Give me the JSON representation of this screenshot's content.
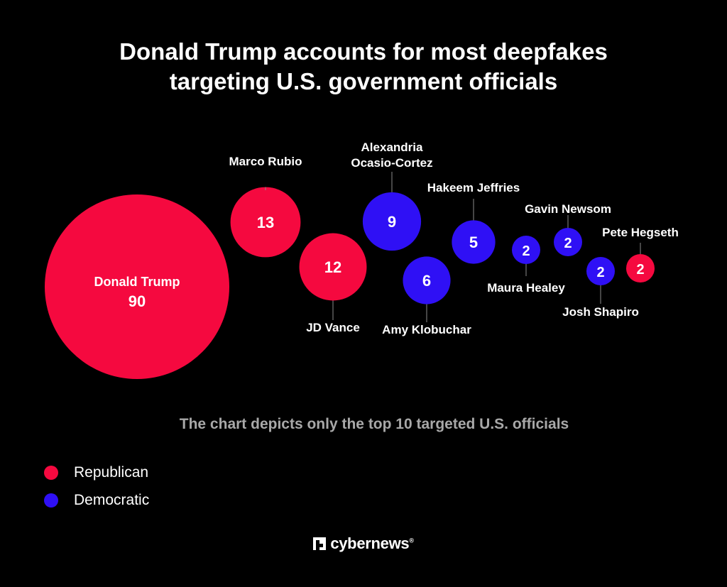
{
  "title_lines": [
    "Donald Trump accounts for most deepfakes",
    "targeting U.S. government officials"
  ],
  "footnote": "The chart depicts only the top 10 targeted U.S. officials",
  "colors": {
    "Republican": "#f5093f",
    "Democratic": "#2f10f5"
  },
  "legend": [
    {
      "party": "Republican",
      "label": "Republican"
    },
    {
      "party": "Democratic",
      "label": "Democratic"
    }
  ],
  "brand": {
    "name": "cybernews",
    "reg": "®"
  },
  "chart_data": {
    "type": "bubble",
    "points": [
      {
        "name": "Donald Trump",
        "value": 90,
        "party": "Republican"
      },
      {
        "name": "Marco Rubio",
        "value": 13,
        "party": "Republican"
      },
      {
        "name": "JD Vance",
        "value": 12,
        "party": "Republican"
      },
      {
        "name": "Alexandria Ocasio-Cortez",
        "value": 9,
        "party": "Democratic"
      },
      {
        "name": "Amy Klobuchar",
        "value": 6,
        "party": "Democratic"
      },
      {
        "name": "Hakeem Jeffries",
        "value": 5,
        "party": "Democratic"
      },
      {
        "name": "Maura Healey",
        "value": 2,
        "party": "Democratic"
      },
      {
        "name": "Gavin Newsom",
        "value": 2,
        "party": "Democratic"
      },
      {
        "name": "Josh Shapiro",
        "value": 2,
        "party": "Democratic"
      },
      {
        "name": "Pete Hegseth",
        "value": 2,
        "party": "Republican"
      }
    ]
  }
}
